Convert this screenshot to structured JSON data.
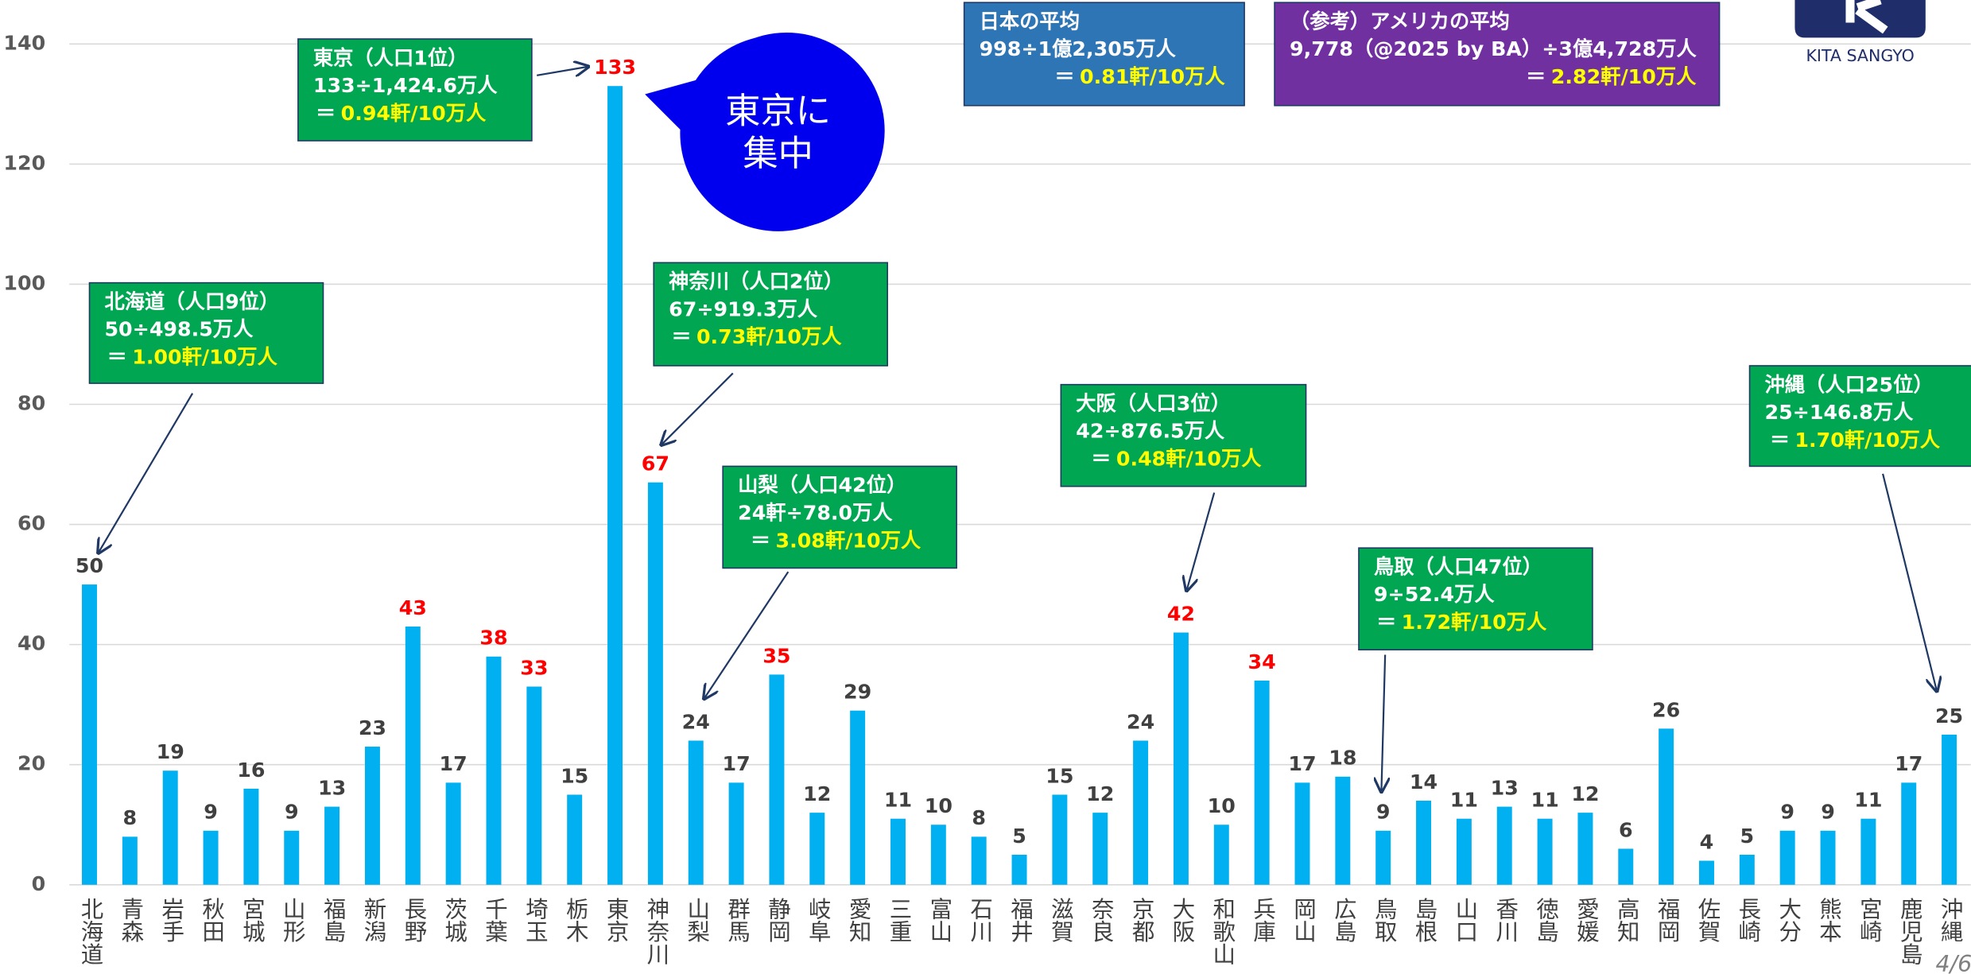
{
  "chart_data": {
    "type": "bar",
    "categories": [
      "北海道",
      "青森",
      "岩手",
      "秋田",
      "宮城",
      "山形",
      "福島",
      "新潟",
      "長野",
      "茨城",
      "千葉",
      "埼玉",
      "栃木",
      "東京",
      "神奈川",
      "山梨",
      "群馬",
      "静岡",
      "岐阜",
      "愛知",
      "三重",
      "富山",
      "石川",
      "福井",
      "滋賀",
      "奈良",
      "京都",
      "大阪",
      "和歌山",
      "兵庫",
      "岡山",
      "広島",
      "鳥取",
      "島根",
      "山口",
      "香川",
      "徳島",
      "愛媛",
      "高知",
      "福岡",
      "佐賀",
      "長崎",
      "大分",
      "熊本",
      "宮崎",
      "鹿児島",
      "沖縄"
    ],
    "values": [
      50,
      8,
      19,
      9,
      16,
      9,
      13,
      23,
      43,
      17,
      38,
      33,
      15,
      133,
      67,
      24,
      17,
      35,
      12,
      29,
      11,
      10,
      8,
      5,
      15,
      12,
      24,
      42,
      10,
      34,
      17,
      18,
      9,
      14,
      11,
      13,
      11,
      12,
      6,
      26,
      4,
      5,
      9,
      9,
      11,
      17,
      25
    ],
    "color": "#00b0f0",
    "label_colors": [
      "#404040",
      "#404040",
      "#404040",
      "#404040",
      "#404040",
      "#404040",
      "#404040",
      "#404040",
      "#ff0000",
      "#404040",
      "#ff0000",
      "#ff0000",
      "#404040",
      "#ff0000",
      "#ff0000",
      "#404040",
      "#404040",
      "#ff0000",
      "#404040",
      "#404040",
      "#404040",
      "#404040",
      "#404040",
      "#404040",
      "#404040",
      "#404040",
      "#404040",
      "#ff0000",
      "#404040",
      "#ff0000",
      "#404040",
      "#404040",
      "#404040",
      "#404040",
      "#404040",
      "#404040",
      "#404040",
      "#404040",
      "#404040",
      "#404040",
      "#404040",
      "#404040",
      "#404040",
      "#404040",
      "#404040",
      "#404040",
      "#404040"
    ],
    "ylim": [
      0,
      140
    ],
    "yticks": [
      0,
      20,
      40,
      60,
      80,
      100,
      120,
      140
    ],
    "grid": true,
    "annotations": [
      {
        "lines": [
          "北海道（人口9位）",
          "50÷498.5万人"
        ],
        "prefix": "＝",
        "result": "1.00軒/10万人",
        "color": "#00a651"
      },
      {
        "lines": [
          "東京（人口1位）",
          "133÷1,424.6万人"
        ],
        "prefix": "＝",
        "result": "0.94軒/10万人",
        "color": "#00a651"
      },
      {
        "lines": [
          "神奈川（人口2位）",
          "67÷919.3万人"
        ],
        "prefix": "＝",
        "result": "0.73軒/10万人",
        "color": "#00a651"
      },
      {
        "lines": [
          "山梨（人口42位）",
          "24軒÷78.0万人"
        ],
        "prefix": "＝",
        "result": "3.08軒/10万人",
        "color": "#00a651"
      },
      {
        "lines": [
          "大阪（人口3位）",
          "42÷876.5万人"
        ],
        "prefix": "＝",
        "result": "0.48軒/10万人",
        "color": "#00a651"
      },
      {
        "lines": [
          "鳥取（人口47位）",
          "9÷52.4万人"
        ],
        "prefix": "＝",
        "result": "1.72軒/10万人",
        "color": "#00a651"
      },
      {
        "lines": [
          "沖縄（人口25位）",
          "25÷146.8万人"
        ],
        "prefix": "＝",
        "result": "1.70軒/10万人",
        "color": "#00a651"
      },
      {
        "lines": [
          "日本の平均",
          "998÷1億2,305万人"
        ],
        "prefix": "＝",
        "result": "0.81軒/10万人",
        "color": "#2e75b6"
      },
      {
        "lines": [
          "（参考）アメリカの平均",
          "9,778（@2025 by BA）÷3億4,728万人"
        ],
        "prefix": "＝",
        "result": "2.82軒/10万人",
        "color": "#7030a0"
      }
    ],
    "callout": [
      "東京に",
      "集中"
    ],
    "logo": "KITA SANGYO",
    "page": "4/6"
  }
}
